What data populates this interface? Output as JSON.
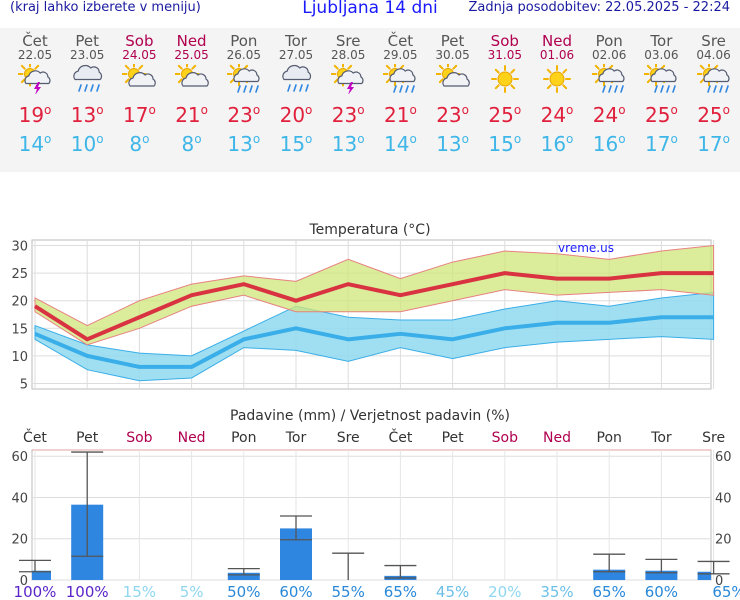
{
  "header": {
    "menu_hint": "(kraj lahko izberete v meniju)",
    "title": "Ljubljana 14 dni",
    "updated": "Zadnja posodobitev: 22.05.2025 - 22:24"
  },
  "colors": {
    "max_line": "#d93241",
    "min_line": "#3aaee8",
    "max_band": "#cfe67a",
    "min_band": "#8fd9ef",
    "bar": "#2f86e0",
    "weekend": "#b0004f"
  },
  "days": [
    {
      "name": "Čet",
      "date": "22.05",
      "weekend": false,
      "icon": "partly-cloudy-thunder-icon",
      "tmax": 19,
      "tmin": 14
    },
    {
      "name": "Pet",
      "date": "23.05",
      "weekend": false,
      "icon": "cloud-rain-icon",
      "tmax": 13,
      "tmin": 10
    },
    {
      "name": "Sob",
      "date": "24.05",
      "weekend": true,
      "icon": "partly-cloudy-icon",
      "tmax": 17,
      "tmin": 8
    },
    {
      "name": "Ned",
      "date": "25.05",
      "weekend": true,
      "icon": "partly-cloudy-icon",
      "tmax": 21,
      "tmin": 8
    },
    {
      "name": "Pon",
      "date": "26.05",
      "weekend": false,
      "icon": "sun-cloud-rain-icon",
      "tmax": 23,
      "tmin": 13
    },
    {
      "name": "Tor",
      "date": "27.05",
      "weekend": false,
      "icon": "cloud-rain-icon",
      "tmax": 20,
      "tmin": 15
    },
    {
      "name": "Sre",
      "date": "28.05",
      "weekend": false,
      "icon": "partly-cloudy-thunder-icon",
      "tmax": 23,
      "tmin": 13
    },
    {
      "name": "Čet",
      "date": "29.05",
      "weekend": false,
      "icon": "sun-cloud-rain-icon",
      "tmax": 21,
      "tmin": 14
    },
    {
      "name": "Pet",
      "date": "30.05",
      "weekend": false,
      "icon": "partly-cloudy-icon",
      "tmax": 23,
      "tmin": 13
    },
    {
      "name": "Sob",
      "date": "31.05",
      "weekend": true,
      "icon": "sun-icon",
      "tmax": 25,
      "tmin": 15
    },
    {
      "name": "Ned",
      "date": "01.06",
      "weekend": true,
      "icon": "sun-icon",
      "tmax": 24,
      "tmin": 16
    },
    {
      "name": "Pon",
      "date": "02.06",
      "weekend": false,
      "icon": "sun-cloud-rain-icon",
      "tmax": 24,
      "tmin": 16
    },
    {
      "name": "Tor",
      "date": "03.06",
      "weekend": false,
      "icon": "sun-cloud-rain-icon",
      "tmax": 25,
      "tmin": 17
    },
    {
      "name": "Sre",
      "date": "04.06",
      "weekend": false,
      "icon": "sun-cloud-rain-icon",
      "tmax": 25,
      "tmin": 17
    }
  ],
  "deg_symbol": "o",
  "chart_data": [
    {
      "type": "line",
      "title": "Temperatura (°C)",
      "watermark": "vreme.us",
      "ylim": [
        4,
        31
      ],
      "yticks": [
        5,
        10,
        15,
        20,
        25,
        30
      ],
      "grid": true,
      "series": [
        {
          "role": "max",
          "values": [
            19,
            13,
            17,
            21,
            23,
            20,
            23,
            21,
            23,
            25,
            24,
            24,
            25,
            25
          ],
          "band_low": [
            18,
            12,
            15,
            19,
            21,
            18,
            18,
            18,
            20,
            22,
            21,
            21.5,
            22,
            21
          ],
          "band_high": [
            20.5,
            15.5,
            20,
            23,
            24.5,
            23.5,
            27.5,
            24,
            27,
            29,
            28.5,
            27.5,
            29,
            30
          ]
        },
        {
          "role": "min",
          "values": [
            14,
            10,
            8,
            8,
            13,
            15,
            13,
            14,
            13,
            15,
            16,
            16,
            17,
            17
          ],
          "band_low": [
            13,
            7.5,
            5.5,
            6,
            11.5,
            11,
            9,
            11.5,
            9.5,
            11.5,
            12.5,
            13,
            13.5,
            13
          ],
          "band_high": [
            15.5,
            12,
            10.5,
            10,
            14.5,
            19,
            17,
            16.5,
            16.5,
            18.5,
            20,
            19,
            20.5,
            21.5
          ]
        }
      ]
    },
    {
      "type": "bar",
      "title": "Padavine (mm) / Verjetnost padavin (%)",
      "ylim": [
        0,
        63
      ],
      "yticks": [
        0,
        20,
        40,
        60
      ],
      "categories": [
        "Čet",
        "Pet",
        "Sob",
        "Ned",
        "Pon",
        "Tor",
        "Sre",
        "Čet",
        "Pet",
        "Sob",
        "Ned",
        "Pon",
        "Tor",
        "Sre"
      ],
      "values": [
        4.5,
        36.5,
        0,
        0,
        3.5,
        25,
        0,
        2,
        0,
        0,
        0,
        5,
        4.5,
        4
      ],
      "err_low": [
        4,
        11.5,
        null,
        null,
        2.5,
        19.5,
        0,
        1,
        null,
        null,
        null,
        4,
        3.5,
        3
      ],
      "err_high": [
        9.5,
        62,
        null,
        null,
        5.5,
        31,
        13,
        7,
        null,
        null,
        null,
        12.5,
        10,
        9
      ],
      "probability": [
        "100%",
        "100%",
        "15%",
        "5%",
        "50%",
        "60%",
        "55%",
        "65%",
        "45%",
        "20%",
        "35%",
        "65%",
        "60%",
        "65%"
      ],
      "probability_colors": [
        "#5a24c8",
        "#5a24c8",
        "#8fd6f0",
        "#8fd6f0",
        "#2a88d8",
        "#2a88d8",
        "#2a88d8",
        "#2a88d8",
        "#6bbfe8",
        "#8fd6f0",
        "#6bbfe8",
        "#2a88d8",
        "#2a88d8",
        "#2a88d8"
      ]
    }
  ]
}
